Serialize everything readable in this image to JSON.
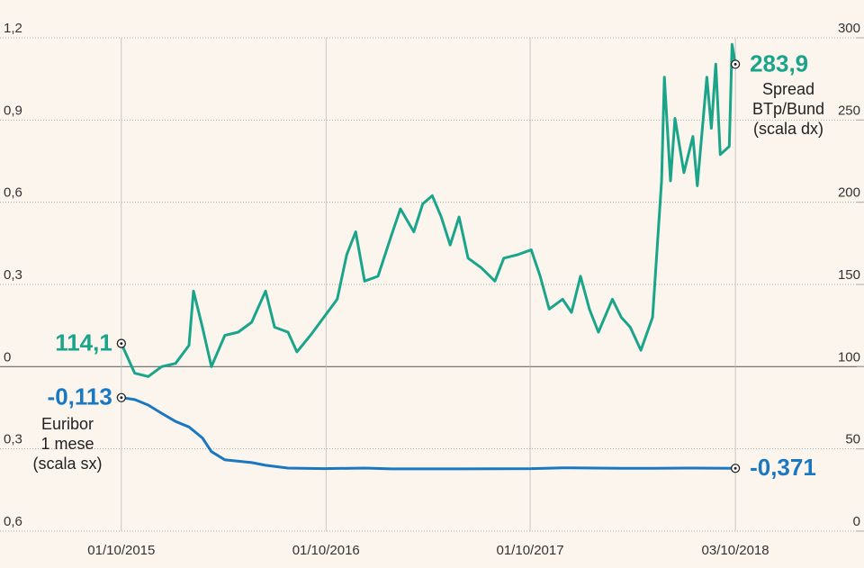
{
  "chart_data": {
    "type": "line",
    "xticks": [
      "01/10/2015",
      "01/10/2016",
      "01/10/2017",
      "03/10/2018"
    ],
    "xlim": [
      "26/02/2015",
      "21/05/2019"
    ],
    "ylim": [
      -0.6,
      1.2
    ],
    "yticks": [
      {
        "value": 1.2,
        "label": "1,2"
      },
      {
        "value": 0.9,
        "label": "0,9"
      },
      {
        "value": 0.6,
        "label": "0,6"
      },
      {
        "value": 0.3,
        "label": "0,3"
      },
      0,
      {
        "value": -0.3,
        "label": "0,3"
      },
      {
        "value": -0.6,
        "label": "0,6"
      }
    ],
    "y2lim": [
      0,
      300
    ],
    "y2ticks": [
      300,
      250,
      200,
      150,
      100,
      50,
      0
    ],
    "grid": true,
    "series": [
      {
        "name": [
          "Spread",
          "BTp/Bund",
          "(scala dx)"
        ],
        "color": "#1aa58a",
        "axis": "y2",
        "x": [
          "01/10/2015",
          "25/10/2015",
          "18/11/2015",
          "12/12/2015",
          "06/01/2016",
          "30/01/2016",
          "07/02/2016",
          "23/02/2016",
          "10/03/2016",
          "03/04/2016",
          "27/04/2016",
          "21/05/2016",
          "15/06/2016",
          "01/07/2016",
          "25/07/2016",
          "10/08/2016",
          "03/09/2016",
          "27/09/2016",
          "21/10/2016",
          "07/11/2016",
          "23/11/2016",
          "09/12/2016",
          "02/01/2017",
          "26/01/2017",
          "11/02/2017",
          "07/03/2017",
          "23/03/2017",
          "09/04/2017",
          "25/04/2017",
          "11/05/2017",
          "27/05/2017",
          "12/06/2017",
          "06/07/2017",
          "30/07/2017",
          "15/08/2017",
          "08/09/2017",
          "03/10/2017",
          "19/10/2017",
          "04/11/2017",
          "28/11/2017",
          "14/12/2017",
          "30/12/2017",
          "15/01/2018",
          "31/01/2018",
          "25/02/2018",
          "13/03/2018",
          "29/03/2018",
          "17/04/2018",
          "08/05/2018",
          "24/05/2018",
          "29/05/2018",
          "09/06/2018",
          "17/06/2018",
          "03/07/2018",
          "19/07/2018",
          "27/07/2018",
          "13/08/2018",
          "21/08/2018",
          "29/08/2018",
          "06/09/2018",
          "22/09/2018",
          "27/09/2018",
          "03/10/2018"
        ],
        "values": [
          114.1,
          96,
          94,
          100,
          102,
          113,
          146,
          124,
          100,
          119,
          121,
          127,
          146,
          124,
          121,
          109,
          119,
          130,
          141,
          168,
          182,
          152,
          155,
          180,
          196,
          182,
          199,
          204,
          191,
          174,
          191,
          166,
          160,
          152,
          166,
          168,
          171,
          155,
          135,
          141,
          133,
          155,
          135,
          121,
          141,
          130,
          124,
          110,
          130,
          213,
          276,
          213,
          251,
          218,
          240,
          210,
          276,
          245,
          284,
          229,
          234,
          296,
          283.9
        ],
        "value_labels": [
          "114,1",
          null,
          null,
          null,
          null,
          null,
          null,
          null,
          null,
          null,
          null,
          null,
          null,
          null,
          null,
          null,
          null,
          null,
          null,
          null,
          null,
          null,
          null,
          null,
          null,
          null,
          null,
          null,
          null,
          null,
          null,
          null,
          null,
          null,
          null,
          null,
          null,
          null,
          null,
          null,
          null,
          null,
          null,
          null,
          null,
          null,
          null,
          null,
          null,
          null,
          null,
          null,
          null,
          null,
          null,
          null,
          null,
          null,
          null,
          null,
          null,
          null,
          "283,9"
        ]
      },
      {
        "name": [
          "Euribor",
          "1 mese",
          "(scala sx)"
        ],
        "color": "#1a78c2",
        "x": [
          "01/10/2015",
          "25/10/2015",
          "18/11/2015",
          "12/12/2015",
          "06/01/2016",
          "30/01/2016",
          "23/02/2016",
          "10/03/2016",
          "03/04/2016",
          "21/05/2016",
          "15/06/2016",
          "25/07/2016",
          "27/09/2016",
          "09/12/2016",
          "26/01/2017",
          "11/05/2017",
          "03/10/2017",
          "28/11/2017",
          "13/03/2018",
          "08/05/2018",
          "19/07/2018",
          "03/10/2018"
        ],
        "values": [
          -0.113,
          -0.12,
          -0.14,
          -0.17,
          -0.2,
          -0.22,
          -0.26,
          -0.31,
          -0.34,
          -0.35,
          -0.36,
          -0.37,
          -0.372,
          -0.37,
          -0.373,
          -0.373,
          -0.372,
          -0.369,
          -0.371,
          -0.371,
          -0.37,
          -0.371
        ],
        "value_labels": [
          "-0,113",
          null,
          null,
          null,
          null,
          null,
          null,
          null,
          null,
          null,
          null,
          null,
          null,
          null,
          null,
          null,
          null,
          null,
          null,
          null,
          null,
          "-0,371"
        ]
      }
    ]
  }
}
